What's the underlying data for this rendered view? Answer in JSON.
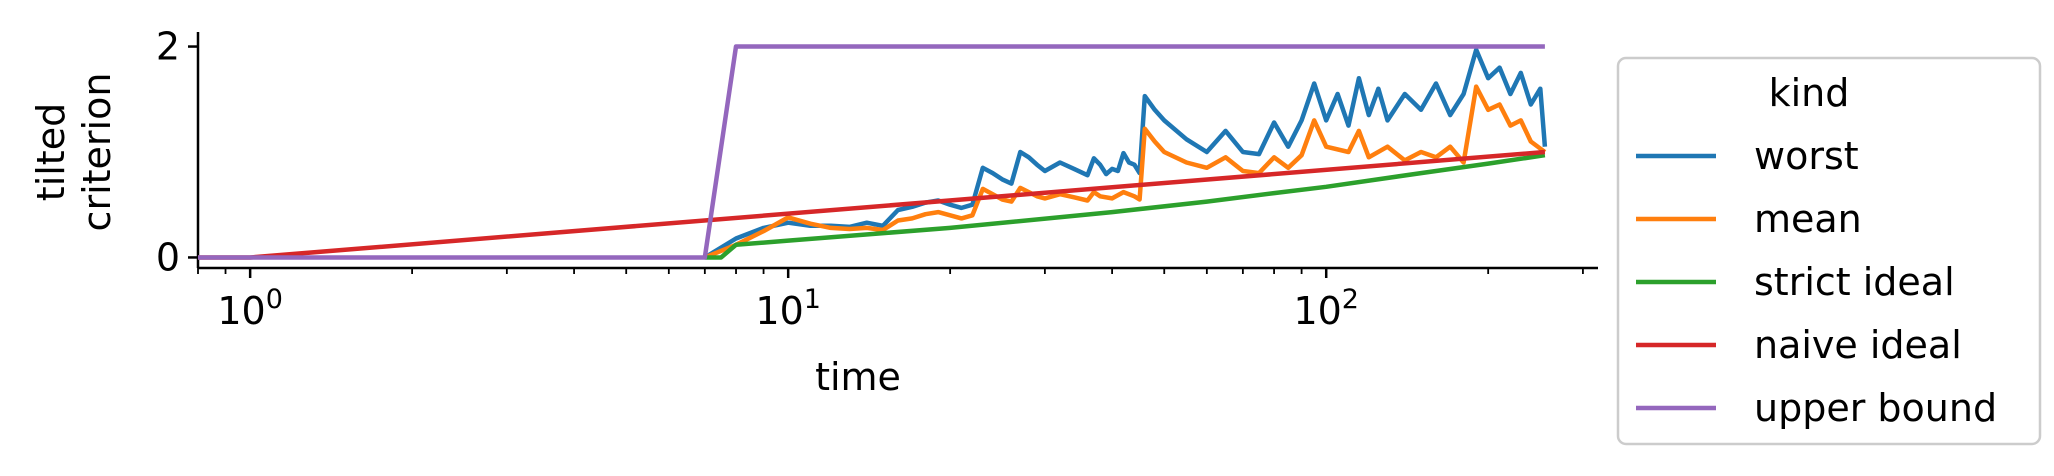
{
  "chart_data": {
    "type": "line",
    "xlabel": "time",
    "ylabel_lines": [
      "tilted",
      "criterion"
    ],
    "x_scale": "log",
    "xlim": [
      0.8,
      320
    ],
    "ylim": [
      -0.1,
      2.1
    ],
    "x_ticks": [
      {
        "value": 1,
        "base": "10",
        "exp": "0"
      },
      {
        "value": 10,
        "base": "10",
        "exp": "1"
      },
      {
        "value": 100,
        "base": "10",
        "exp": "2"
      }
    ],
    "y_ticks": [
      0,
      2
    ],
    "grid": false,
    "legend": {
      "title": "kind",
      "placement": "outside-right"
    },
    "series": [
      {
        "name": "worst",
        "color": "#1f77b4",
        "points": [
          [
            7.0,
            0.0
          ],
          [
            8.0,
            0.18
          ],
          [
            9.0,
            0.28
          ],
          [
            10.0,
            0.33
          ],
          [
            11.0,
            0.3
          ],
          [
            12.0,
            0.3
          ],
          [
            13.0,
            0.29
          ],
          [
            14.0,
            0.33
          ],
          [
            15.0,
            0.3
          ],
          [
            16.0,
            0.45
          ],
          [
            17.0,
            0.48
          ],
          [
            18.0,
            0.52
          ],
          [
            19.0,
            0.54
          ],
          [
            20.0,
            0.5
          ],
          [
            21.0,
            0.47
          ],
          [
            22.0,
            0.5
          ],
          [
            23.0,
            0.85
          ],
          [
            24.0,
            0.8
          ],
          [
            25.0,
            0.74
          ],
          [
            26.0,
            0.7
          ],
          [
            27.0,
            1.0
          ],
          [
            28.0,
            0.95
          ],
          [
            29.0,
            0.88
          ],
          [
            30.0,
            0.82
          ],
          [
            32.0,
            0.9
          ],
          [
            34.0,
            0.84
          ],
          [
            36.0,
            0.78
          ],
          [
            37.0,
            0.94
          ],
          [
            38.0,
            0.88
          ],
          [
            39.0,
            0.79
          ],
          [
            40.0,
            0.84
          ],
          [
            41.0,
            0.82
          ],
          [
            42.0,
            0.99
          ],
          [
            43.0,
            0.9
          ],
          [
            44.0,
            0.88
          ],
          [
            45.0,
            0.8
          ],
          [
            46.0,
            1.53
          ],
          [
            48.0,
            1.4
          ],
          [
            50.0,
            1.3
          ],
          [
            55.0,
            1.12
          ],
          [
            60.0,
            1.0
          ],
          [
            65.0,
            1.2
          ],
          [
            70.0,
            1.0
          ],
          [
            75.0,
            0.98
          ],
          [
            80.0,
            1.28
          ],
          [
            85.0,
            1.05
          ],
          [
            90.0,
            1.3
          ],
          [
            95.0,
            1.65
          ],
          [
            100.0,
            1.3
          ],
          [
            105.0,
            1.55
          ],
          [
            110.0,
            1.25
          ],
          [
            115.0,
            1.7
          ],
          [
            120.0,
            1.35
          ],
          [
            125.0,
            1.6
          ],
          [
            130.0,
            1.3
          ],
          [
            140.0,
            1.55
          ],
          [
            150.0,
            1.4
          ],
          [
            160.0,
            1.65
          ],
          [
            170.0,
            1.35
          ],
          [
            180.0,
            1.55
          ],
          [
            190.0,
            1.97
          ],
          [
            200.0,
            1.7
          ],
          [
            210.0,
            1.8
          ],
          [
            220.0,
            1.55
          ],
          [
            230.0,
            1.75
          ],
          [
            240.0,
            1.45
          ],
          [
            250.0,
            1.6
          ],
          [
            255.0,
            1.05
          ]
        ]
      },
      {
        "name": "mean",
        "color": "#ff7f0e",
        "points": [
          [
            7.0,
            0.0
          ],
          [
            8.0,
            0.12
          ],
          [
            9.0,
            0.25
          ],
          [
            10.0,
            0.38
          ],
          [
            11.0,
            0.32
          ],
          [
            12.0,
            0.28
          ],
          [
            13.0,
            0.27
          ],
          [
            14.0,
            0.28
          ],
          [
            15.0,
            0.26
          ],
          [
            16.0,
            0.35
          ],
          [
            17.0,
            0.37
          ],
          [
            18.0,
            0.41
          ],
          [
            19.0,
            0.43
          ],
          [
            20.0,
            0.4
          ],
          [
            21.0,
            0.37
          ],
          [
            22.0,
            0.4
          ],
          [
            23.0,
            0.65
          ],
          [
            24.0,
            0.6
          ],
          [
            25.0,
            0.55
          ],
          [
            26.0,
            0.53
          ],
          [
            27.0,
            0.66
          ],
          [
            28.0,
            0.62
          ],
          [
            29.0,
            0.58
          ],
          [
            30.0,
            0.56
          ],
          [
            32.0,
            0.6
          ],
          [
            34.0,
            0.57
          ],
          [
            36.0,
            0.54
          ],
          [
            37.0,
            0.62
          ],
          [
            38.0,
            0.58
          ],
          [
            40.0,
            0.56
          ],
          [
            42.0,
            0.62
          ],
          [
            44.0,
            0.58
          ],
          [
            45.0,
            0.55
          ],
          [
            46.0,
            1.22
          ],
          [
            48.0,
            1.1
          ],
          [
            50.0,
            1.0
          ],
          [
            55.0,
            0.9
          ],
          [
            60.0,
            0.85
          ],
          [
            65.0,
            0.95
          ],
          [
            70.0,
            0.82
          ],
          [
            75.0,
            0.8
          ],
          [
            80.0,
            0.95
          ],
          [
            85.0,
            0.85
          ],
          [
            90.0,
            0.97
          ],
          [
            95.0,
            1.3
          ],
          [
            100.0,
            1.05
          ],
          [
            110.0,
            1.0
          ],
          [
            115.0,
            1.2
          ],
          [
            120.0,
            0.95
          ],
          [
            130.0,
            1.05
          ],
          [
            140.0,
            0.92
          ],
          [
            150.0,
            1.0
          ],
          [
            160.0,
            0.95
          ],
          [
            170.0,
            1.05
          ],
          [
            180.0,
            0.9
          ],
          [
            190.0,
            1.62
          ],
          [
            200.0,
            1.4
          ],
          [
            210.0,
            1.45
          ],
          [
            220.0,
            1.25
          ],
          [
            230.0,
            1.3
          ],
          [
            240.0,
            1.1
          ],
          [
            255.0,
            1.0
          ]
        ]
      },
      {
        "name": "strict ideal",
        "color": "#2ca02c",
        "points": [
          [
            7.0,
            0.0
          ],
          [
            7.5,
            0.0
          ],
          [
            8.0,
            0.12
          ],
          [
            10.0,
            0.16
          ],
          [
            20.0,
            0.28
          ],
          [
            40.0,
            0.43
          ],
          [
            60.0,
            0.53
          ],
          [
            80.0,
            0.61
          ],
          [
            100.0,
            0.67
          ],
          [
            150.0,
            0.8
          ],
          [
            200.0,
            0.89
          ],
          [
            255.0,
            0.97
          ]
        ]
      },
      {
        "name": "naive ideal",
        "color": "#d62728",
        "points": [
          [
            0.8,
            0.0
          ],
          [
            1.0,
            0.0
          ],
          [
            255.0,
            1.0
          ]
        ]
      },
      {
        "name": "upper bound",
        "color": "#9467bd",
        "points": [
          [
            0.8,
            0.0
          ],
          [
            7.0,
            0.0
          ],
          [
            8.0,
            2.0
          ],
          [
            255.0,
            2.0
          ]
        ]
      }
    ]
  }
}
